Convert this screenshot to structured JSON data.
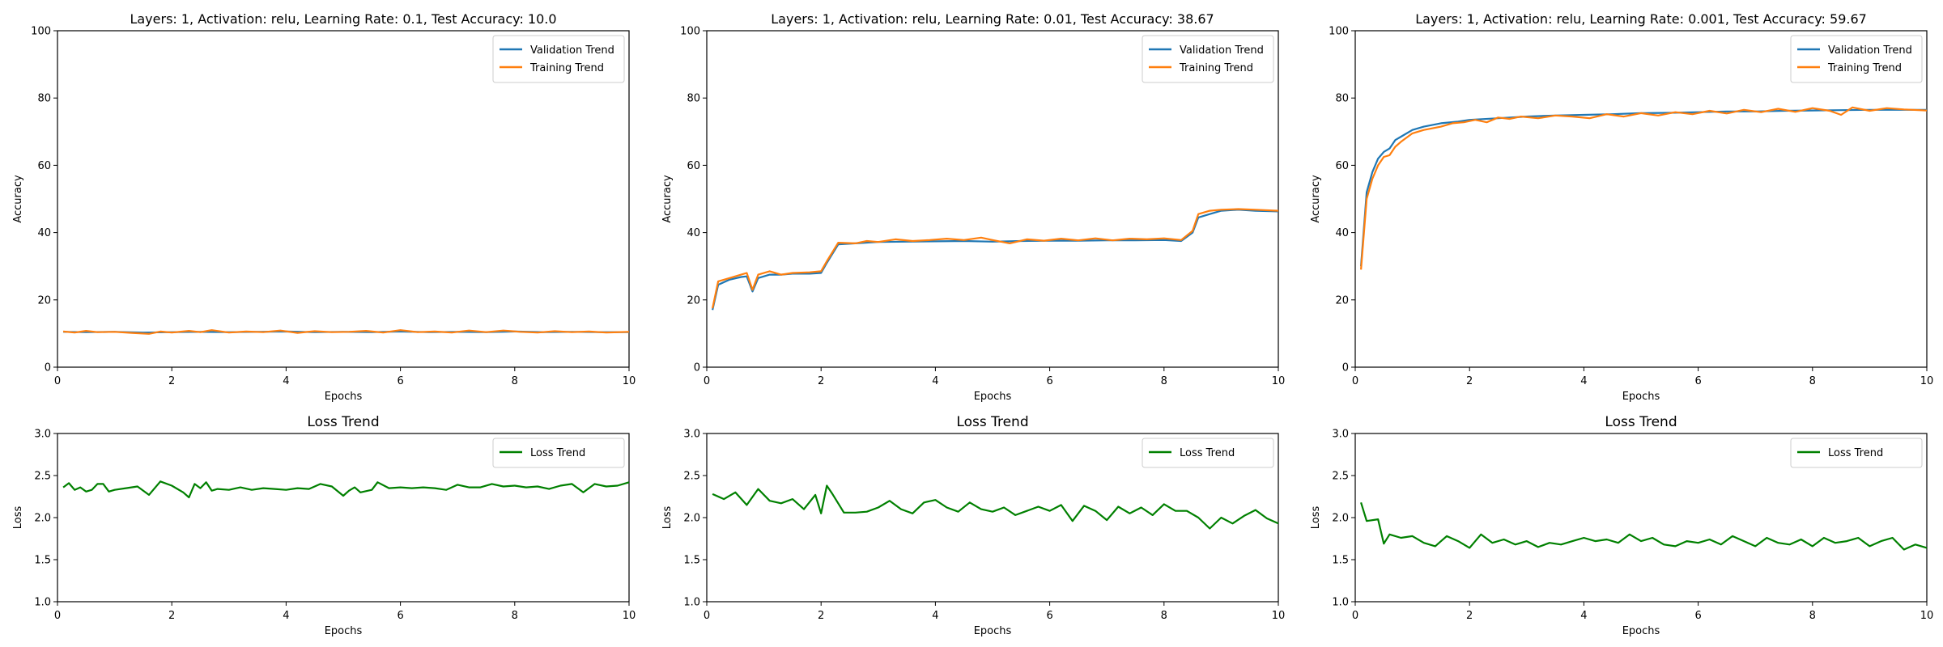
{
  "colors": {
    "validation": "#1f77b4",
    "training": "#ff7f0e",
    "loss": "#008000"
  },
  "chart_data": [
    {
      "type": "line",
      "title": "Layers: 1, Activation: relu, Learning Rate: 0.1, Test Accuracy: 10.0",
      "xlabel": "Epochs",
      "ylabel": "Accuracy",
      "xlim": [
        0,
        10
      ],
      "ylim": [
        0,
        100
      ],
      "xticks": [
        "0",
        "2",
        "4",
        "6",
        "8",
        "10"
      ],
      "yticks": [
        "0",
        "20",
        "40",
        "60",
        "80",
        "100"
      ],
      "legend": "top-right",
      "grid": false,
      "series": [
        {
          "name": "Validation Trend",
          "x": [
            0.1,
            0.5,
            1,
            1.5,
            2,
            2.5,
            3,
            3.5,
            4,
            4.5,
            5,
            5.5,
            6,
            6.5,
            7,
            7.5,
            8,
            8.5,
            9,
            9.5,
            10
          ],
          "y": [
            10.5,
            10.4,
            10.5,
            10.3,
            10.4,
            10.5,
            10.4,
            10.5,
            10.6,
            10.4,
            10.5,
            10.4,
            10.6,
            10.4,
            10.5,
            10.4,
            10.6,
            10.4,
            10.5,
            10.4,
            10.4
          ]
        },
        {
          "name": "Training Trend",
          "x": [
            0.1,
            0.3,
            0.5,
            0.7,
            1,
            1.3,
            1.6,
            1.8,
            2,
            2.3,
            2.5,
            2.7,
            3,
            3.3,
            3.6,
            3.9,
            4.2,
            4.5,
            4.8,
            5.1,
            5.4,
            5.7,
            6,
            6.3,
            6.6,
            6.9,
            7.2,
            7.5,
            7.8,
            8.1,
            8.4,
            8.7,
            9,
            9.3,
            9.6,
            10
          ],
          "y": [
            10.6,
            10.3,
            10.8,
            10.4,
            10.5,
            10.2,
            9.9,
            10.6,
            10.3,
            10.8,
            10.4,
            11.0,
            10.3,
            10.6,
            10.4,
            10.9,
            10.2,
            10.7,
            10.4,
            10.5,
            10.8,
            10.3,
            11.0,
            10.4,
            10.6,
            10.3,
            10.9,
            10.4,
            10.9,
            10.5,
            10.3,
            10.7,
            10.4,
            10.6,
            10.3,
            10.5
          ]
        }
      ]
    },
    {
      "type": "line",
      "title": "Layers: 1, Activation: relu, Learning Rate: 0.01, Test Accuracy: 38.67",
      "xlabel": "Epochs",
      "ylabel": "Accuracy",
      "xlim": [
        0,
        10
      ],
      "ylim": [
        0,
        100
      ],
      "xticks": [
        "0",
        "2",
        "4",
        "6",
        "8",
        "10"
      ],
      "yticks": [
        "0",
        "20",
        "40",
        "60",
        "80",
        "100"
      ],
      "legend": "top-right",
      "grid": false,
      "series": [
        {
          "name": "Validation Trend",
          "x": [
            0.1,
            0.2,
            0.4,
            0.6,
            0.7,
            0.8,
            0.9,
            1.1,
            1.3,
            1.5,
            1.8,
            2.0,
            2.1,
            2.3,
            2.6,
            3.0,
            3.5,
            4.0,
            4.5,
            5.0,
            5.5,
            6.0,
            6.5,
            7.0,
            7.5,
            8.0,
            8.3,
            8.5,
            8.6,
            8.8,
            9.0,
            9.3,
            9.6,
            10.0
          ],
          "y": [
            17.0,
            24.5,
            26.0,
            26.8,
            27.0,
            22.5,
            26.5,
            27.5,
            27.5,
            27.8,
            27.8,
            28.0,
            31.0,
            36.5,
            36.8,
            37.2,
            37.3,
            37.4,
            37.5,
            37.3,
            37.5,
            37.6,
            37.6,
            37.7,
            37.7,
            37.8,
            37.5,
            40.0,
            44.5,
            45.5,
            46.5,
            46.8,
            46.5,
            46.3
          ]
        },
        {
          "name": "Training Trend",
          "x": [
            0.1,
            0.2,
            0.4,
            0.6,
            0.7,
            0.8,
            0.9,
            1.1,
            1.3,
            1.5,
            1.8,
            2.0,
            2.1,
            2.3,
            2.6,
            2.8,
            3.0,
            3.3,
            3.6,
            3.9,
            4.2,
            4.5,
            4.8,
            5.0,
            5.3,
            5.6,
            5.9,
            6.2,
            6.5,
            6.8,
            7.1,
            7.4,
            7.7,
            8.0,
            8.3,
            8.5,
            8.6,
            8.8,
            9.0,
            9.3,
            9.6,
            10.0
          ],
          "y": [
            17.5,
            25.5,
            26.5,
            27.5,
            28.0,
            23.0,
            27.5,
            28.5,
            27.5,
            28.0,
            28.2,
            28.5,
            31.5,
            37.0,
            36.8,
            37.5,
            37.2,
            38.0,
            37.5,
            37.8,
            38.2,
            37.8,
            38.5,
            37.8,
            36.8,
            38.0,
            37.6,
            38.2,
            37.7,
            38.3,
            37.7,
            38.2,
            38.0,
            38.3,
            37.8,
            40.5,
            45.5,
            46.5,
            46.8,
            47.0,
            46.8,
            46.5
          ]
        }
      ]
    },
    {
      "type": "line",
      "title": "Layers: 1, Activation: relu, Learning Rate: 0.001, Test Accuracy: 59.67",
      "xlabel": "Epochs",
      "ylabel": "Accuracy",
      "xlim": [
        0,
        10
      ],
      "ylim": [
        0,
        100
      ],
      "xticks": [
        "0",
        "2",
        "4",
        "6",
        "8",
        "10"
      ],
      "yticks": [
        "0",
        "20",
        "40",
        "60",
        "80",
        "100"
      ],
      "legend": "top-right",
      "grid": false,
      "series": [
        {
          "name": "Validation Trend",
          "x": [
            0.1,
            0.2,
            0.3,
            0.4,
            0.5,
            0.6,
            0.7,
            0.8,
            1.0,
            1.2,
            1.5,
            1.8,
            2.0,
            2.5,
            3.0,
            3.5,
            4.0,
            4.5,
            5.0,
            5.5,
            6.0,
            6.5,
            7.0,
            7.5,
            8.0,
            8.5,
            9.0,
            9.5,
            10.0
          ],
          "y": [
            30.0,
            52.0,
            58.0,
            62.0,
            64.0,
            65.0,
            67.5,
            68.5,
            70.5,
            71.5,
            72.5,
            73.0,
            73.5,
            74.0,
            74.5,
            74.8,
            75.0,
            75.2,
            75.5,
            75.6,
            75.8,
            76.0,
            76.0,
            76.2,
            76.3,
            76.4,
            76.5,
            76.5,
            76.5
          ]
        },
        {
          "name": "Training Trend",
          "x": [
            0.1,
            0.2,
            0.3,
            0.4,
            0.5,
            0.6,
            0.7,
            0.8,
            1.0,
            1.2,
            1.5,
            1.7,
            1.9,
            2.1,
            2.3,
            2.5,
            2.7,
            2.9,
            3.2,
            3.5,
            3.8,
            4.1,
            4.4,
            4.7,
            5.0,
            5.3,
            5.6,
            5.9,
            6.2,
            6.5,
            6.8,
            7.1,
            7.4,
            7.7,
            8.0,
            8.3,
            8.5,
            8.7,
            9.0,
            9.3,
            9.6,
            10.0
          ],
          "y": [
            29.0,
            50.0,
            56.0,
            60.0,
            62.5,
            63.0,
            65.5,
            67.0,
            69.5,
            70.5,
            71.5,
            72.5,
            72.8,
            73.5,
            72.8,
            74.2,
            73.8,
            74.5,
            74.0,
            74.8,
            74.5,
            74.0,
            75.2,
            74.5,
            75.5,
            74.8,
            75.8,
            75.2,
            76.2,
            75.4,
            76.5,
            75.8,
            76.8,
            75.9,
            77.0,
            76.2,
            75.0,
            77.2,
            76.2,
            77.0,
            76.6,
            76.3
          ]
        }
      ]
    },
    {
      "type": "line",
      "title": "Loss Trend",
      "xlabel": "Epochs",
      "ylabel": "Loss",
      "xlim": [
        0,
        10
      ],
      "ylim": [
        1.0,
        3.0
      ],
      "xticks": [
        "0",
        "2",
        "4",
        "6",
        "8",
        "10"
      ],
      "yticks": [
        "1.0",
        "1.5",
        "2.0",
        "2.5",
        "3.0"
      ],
      "legend": "top-right",
      "grid": false,
      "series": [
        {
          "name": "Loss Trend",
          "x": [
            0.1,
            0.2,
            0.3,
            0.4,
            0.5,
            0.6,
            0.7,
            0.8,
            0.9,
            1.0,
            1.2,
            1.4,
            1.6,
            1.8,
            2.0,
            2.2,
            2.3,
            2.4,
            2.5,
            2.6,
            2.7,
            2.8,
            3.0,
            3.2,
            3.4,
            3.6,
            3.8,
            4.0,
            4.2,
            4.4,
            4.6,
            4.8,
            5.0,
            5.1,
            5.2,
            5.3,
            5.5,
            5.6,
            5.8,
            6.0,
            6.2,
            6.4,
            6.6,
            6.8,
            7.0,
            7.2,
            7.4,
            7.6,
            7.8,
            8.0,
            8.2,
            8.4,
            8.6,
            8.8,
            9.0,
            9.2,
            9.4,
            9.6,
            9.8,
            10.0
          ],
          "y": [
            2.36,
            2.41,
            2.33,
            2.36,
            2.31,
            2.33,
            2.4,
            2.4,
            2.31,
            2.33,
            2.35,
            2.37,
            2.27,
            2.43,
            2.38,
            2.3,
            2.24,
            2.4,
            2.35,
            2.42,
            2.32,
            2.34,
            2.33,
            2.36,
            2.33,
            2.35,
            2.34,
            2.33,
            2.35,
            2.34,
            2.4,
            2.37,
            2.26,
            2.32,
            2.36,
            2.3,
            2.33,
            2.42,
            2.35,
            2.36,
            2.35,
            2.36,
            2.35,
            2.33,
            2.39,
            2.36,
            2.36,
            2.4,
            2.37,
            2.38,
            2.36,
            2.37,
            2.34,
            2.38,
            2.4,
            2.3,
            2.4,
            2.37,
            2.38,
            2.42
          ]
        }
      ]
    },
    {
      "type": "line",
      "title": "Loss Trend",
      "xlabel": "Epochs",
      "ylabel": "Loss",
      "xlim": [
        0,
        10
      ],
      "ylim": [
        1.0,
        3.0
      ],
      "xticks": [
        "0",
        "2",
        "4",
        "6",
        "8",
        "10"
      ],
      "yticks": [
        "1.0",
        "1.5",
        "2.0",
        "2.5",
        "3.0"
      ],
      "legend": "top-right",
      "grid": false,
      "series": [
        {
          "name": "Loss Trend",
          "x": [
            0.1,
            0.3,
            0.5,
            0.7,
            0.9,
            1.1,
            1.3,
            1.5,
            1.7,
            1.9,
            2.0,
            2.1,
            2.2,
            2.4,
            2.6,
            2.8,
            3.0,
            3.2,
            3.4,
            3.6,
            3.8,
            4.0,
            4.2,
            4.4,
            4.6,
            4.8,
            5.0,
            5.2,
            5.4,
            5.6,
            5.8,
            6.0,
            6.2,
            6.4,
            6.6,
            6.8,
            7.0,
            7.2,
            7.4,
            7.6,
            7.8,
            8.0,
            8.2,
            8.4,
            8.6,
            8.8,
            9.0,
            9.2,
            9.4,
            9.6,
            9.8,
            10.0
          ],
          "y": [
            2.28,
            2.22,
            2.3,
            2.15,
            2.34,
            2.2,
            2.17,
            2.22,
            2.1,
            2.27,
            2.05,
            2.38,
            2.28,
            2.06,
            2.06,
            2.07,
            2.12,
            2.2,
            2.1,
            2.05,
            2.18,
            2.21,
            2.12,
            2.07,
            2.18,
            2.1,
            2.07,
            2.12,
            2.03,
            2.08,
            2.13,
            2.08,
            2.15,
            1.96,
            2.14,
            2.08,
            1.97,
            2.13,
            2.05,
            2.12,
            2.03,
            2.16,
            2.08,
            2.08,
            2.0,
            1.87,
            2.0,
            1.93,
            2.02,
            2.09,
            1.99,
            1.93
          ]
        }
      ]
    },
    {
      "type": "line",
      "title": "Loss Trend",
      "xlabel": "Epochs",
      "ylabel": "Loss",
      "xlim": [
        0,
        10
      ],
      "ylim": [
        1.0,
        3.0
      ],
      "xticks": [
        "0",
        "2",
        "4",
        "6",
        "8",
        "10"
      ],
      "yticks": [
        "1.0",
        "1.5",
        "2.0",
        "2.5",
        "3.0"
      ],
      "legend": "top-right",
      "grid": false,
      "series": [
        {
          "name": "Loss Trend",
          "x": [
            0.1,
            0.2,
            0.4,
            0.5,
            0.6,
            0.8,
            1.0,
            1.2,
            1.4,
            1.6,
            1.8,
            2.0,
            2.2,
            2.4,
            2.6,
            2.8,
            3.0,
            3.2,
            3.4,
            3.6,
            3.8,
            4.0,
            4.2,
            4.4,
            4.6,
            4.8,
            5.0,
            5.2,
            5.4,
            5.6,
            5.8,
            6.0,
            6.2,
            6.4,
            6.6,
            6.8,
            7.0,
            7.2,
            7.4,
            7.6,
            7.8,
            8.0,
            8.2,
            8.4,
            8.6,
            8.8,
            9.0,
            9.2,
            9.4,
            9.6,
            9.8,
            10.0
          ],
          "y": [
            2.18,
            1.96,
            1.98,
            1.69,
            1.8,
            1.76,
            1.78,
            1.7,
            1.66,
            1.78,
            1.72,
            1.64,
            1.8,
            1.7,
            1.74,
            1.68,
            1.72,
            1.65,
            1.7,
            1.68,
            1.72,
            1.76,
            1.72,
            1.74,
            1.7,
            1.8,
            1.72,
            1.76,
            1.68,
            1.66,
            1.72,
            1.7,
            1.74,
            1.68,
            1.78,
            1.72,
            1.66,
            1.76,
            1.7,
            1.68,
            1.74,
            1.66,
            1.76,
            1.7,
            1.72,
            1.76,
            1.66,
            1.72,
            1.76,
            1.62,
            1.68,
            1.64
          ]
        }
      ]
    }
  ]
}
